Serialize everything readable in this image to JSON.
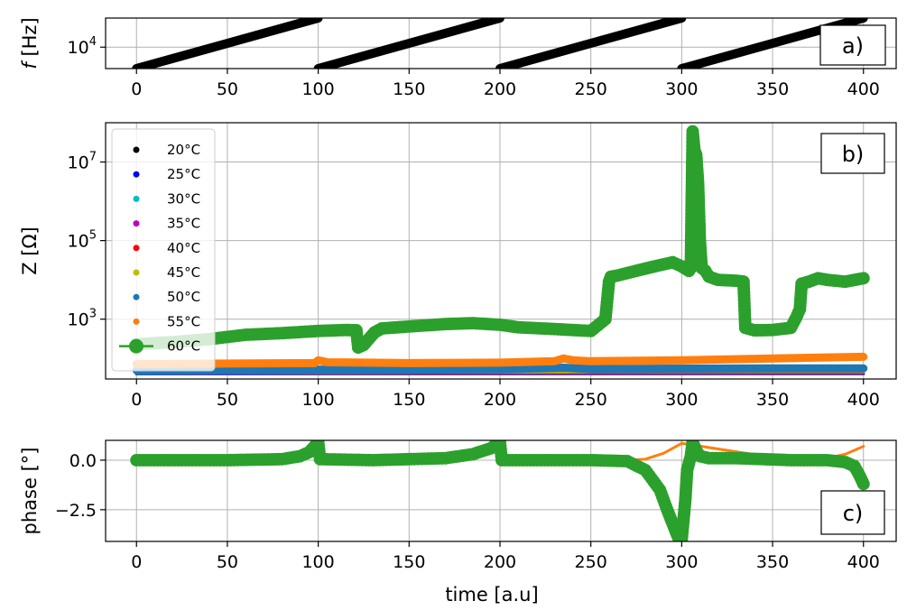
{
  "chart_data": [
    {
      "type": "scatter",
      "panel": "a)",
      "ylabel_italic": "f",
      "ylabel_rest": " [Hz]",
      "xlim": [
        -17,
        418
      ],
      "ylim": [
        6000,
        20000
      ],
      "yscale": "log",
      "grid": true,
      "xticks": [
        "0",
        "50",
        "100",
        "150",
        "200",
        "250",
        "300",
        "350",
        "400"
      ],
      "yticks": [
        {
          "base": "10",
          "exp": "4",
          "value": 10000
        }
      ],
      "sweep": {
        "periods": [
          [
            0,
            100
          ],
          [
            100,
            200
          ],
          [
            200,
            300
          ],
          [
            300,
            400
          ]
        ],
        "f_start": 6000,
        "f_end": 20000
      },
      "series": [
        {
          "name": "",
          "color": "#000000"
        }
      ]
    },
    {
      "type": "line",
      "panel": "b)",
      "ylabel": "Z [Ω]",
      "xlim": [
        -17,
        418
      ],
      "ylim": [
        30,
        100000000
      ],
      "yscale": "log",
      "grid": true,
      "legend_position": "top-left",
      "xticks": [
        "0",
        "50",
        "100",
        "150",
        "200",
        "250",
        "300",
        "350",
        "400"
      ],
      "yticks": [
        {
          "base": "10",
          "exp": "3",
          "value": 1000
        },
        {
          "base": "10",
          "exp": "5",
          "value": 100000
        },
        {
          "base": "10",
          "exp": "7",
          "value": 10000000
        }
      ],
      "series": [
        {
          "name": "20°C",
          "color": "#000000",
          "x": [
            0,
            100,
            200,
            300,
            400
          ],
          "y": [
            40,
            40,
            40,
            40,
            40
          ]
        },
        {
          "name": "25°C",
          "color": "#0000ff",
          "x": [
            0,
            100,
            200,
            300,
            400
          ],
          "y": [
            40,
            40,
            40,
            40,
            40
          ]
        },
        {
          "name": "30°C",
          "color": "#00bfbf",
          "x": [
            0,
            100,
            200,
            300,
            400
          ],
          "y": [
            41,
            41,
            41,
            41,
            41
          ]
        },
        {
          "name": "35°C",
          "color": "#bf00bf",
          "x": [
            0,
            100,
            200,
            300,
            400
          ],
          "y": [
            42,
            42,
            42,
            42,
            42
          ]
        },
        {
          "name": "40°C",
          "color": "#ff0000",
          "x": [
            0,
            100,
            200,
            300,
            400
          ],
          "y": [
            43,
            43,
            43,
            43,
            43
          ]
        },
        {
          "name": "45°C",
          "color": "#bfbf00",
          "x": [
            0,
            100,
            200,
            300,
            400
          ],
          "y": [
            44,
            44,
            45,
            46,
            46
          ]
        },
        {
          "name": "50°C",
          "color": "#1f77b4",
          "x": [
            0,
            50,
            100,
            150,
            200,
            235,
            250,
            300,
            350,
            400
          ],
          "y": [
            50,
            51,
            52,
            52,
            53,
            58,
            54,
            55,
            56,
            56
          ]
        },
        {
          "name": "55°C",
          "color": "#ff7f0e",
          "x": [
            0,
            50,
            98,
            100,
            105,
            150,
            200,
            230,
            235,
            240,
            250,
            300,
            350,
            400
          ],
          "y": [
            72,
            74,
            76,
            90,
            80,
            76,
            78,
            85,
            100,
            90,
            85,
            90,
            100,
            110
          ]
        },
        {
          "name": "60°C",
          "color": "#2ca02c",
          "marker": "o",
          "x": [
            0,
            20,
            40,
            60,
            80,
            100,
            115,
            121,
            122,
            125,
            128,
            131,
            135,
            150,
            170,
            185,
            200,
            210,
            230,
            250,
            258,
            260,
            261,
            265,
            275,
            285,
            295,
            300,
            304,
            305,
            306,
            307,
            308,
            309,
            310,
            311,
            313,
            315,
            320,
            330,
            334,
            335,
            340,
            350,
            360,
            363,
            365,
            366,
            370,
            375,
            380,
            390,
            400
          ],
          "y": [
            230,
            260,
            310,
            400,
            440,
            500,
            530,
            520,
            190,
            220,
            320,
            460,
            580,
            650,
            750,
            790,
            720,
            620,
            560,
            500,
            1000,
            9000,
            12000,
            13000,
            17000,
            22000,
            28000,
            22000,
            17000,
            20000,
            60000000,
            20000000,
            15000000,
            3000000,
            100000,
            20000,
            17000,
            12000,
            10000,
            9500,
            9000,
            600,
            520,
            530,
            600,
            1100,
            1800,
            8000,
            9000,
            11000,
            10000,
            9000,
            11000
          ]
        }
      ]
    },
    {
      "type": "line",
      "panel": "c)",
      "ylabel": "phase [°]",
      "xlabel": "time [a.u]",
      "xlim": [
        -17,
        418
      ],
      "ylim": [
        -4.1,
        1.0
      ],
      "grid": true,
      "xticks": [
        "0",
        "50",
        "100",
        "150",
        "200",
        "250",
        "300",
        "350",
        "400"
      ],
      "yticks": [
        {
          "label": "0.0",
          "value": 0.0
        },
        {
          "label": "−2.5",
          "value": -2.5
        }
      ],
      "series": [
        {
          "name": "55°C",
          "color": "#ff7f0e",
          "x": [
            270,
            280,
            290,
            295,
            300,
            360,
            380,
            390,
            395,
            400
          ],
          "y": [
            0.0,
            0.05,
            0.35,
            0.6,
            0.85,
            0.0,
            0.1,
            0.3,
            0.5,
            0.7
          ]
        },
        {
          "name": "60°C",
          "color": "#2ca02c",
          "marker": "o",
          "x": [
            0,
            50,
            80,
            90,
            95,
            98,
            100,
            101,
            130,
            170,
            185,
            195,
            198,
            200,
            201,
            250,
            270,
            280,
            288,
            292,
            295,
            298,
            300,
            302,
            303,
            305,
            306,
            308,
            310,
            315,
            330,
            360,
            380,
            390,
            395,
            398,
            400
          ],
          "y": [
            0.0,
            0.0,
            0.05,
            0.2,
            0.4,
            0.7,
            0.9,
            0.05,
            0.0,
            0.1,
            0.3,
            0.6,
            0.8,
            0.9,
            0.0,
            0.0,
            -0.05,
            -0.5,
            -1.5,
            -2.5,
            -3.2,
            -3.9,
            -4.0,
            -2.0,
            -0.5,
            0.2,
            0.9,
            0.5,
            0.2,
            0.1,
            0.1,
            0.0,
            0.0,
            -0.1,
            -0.3,
            -0.8,
            -1.2
          ]
        }
      ]
    }
  ]
}
